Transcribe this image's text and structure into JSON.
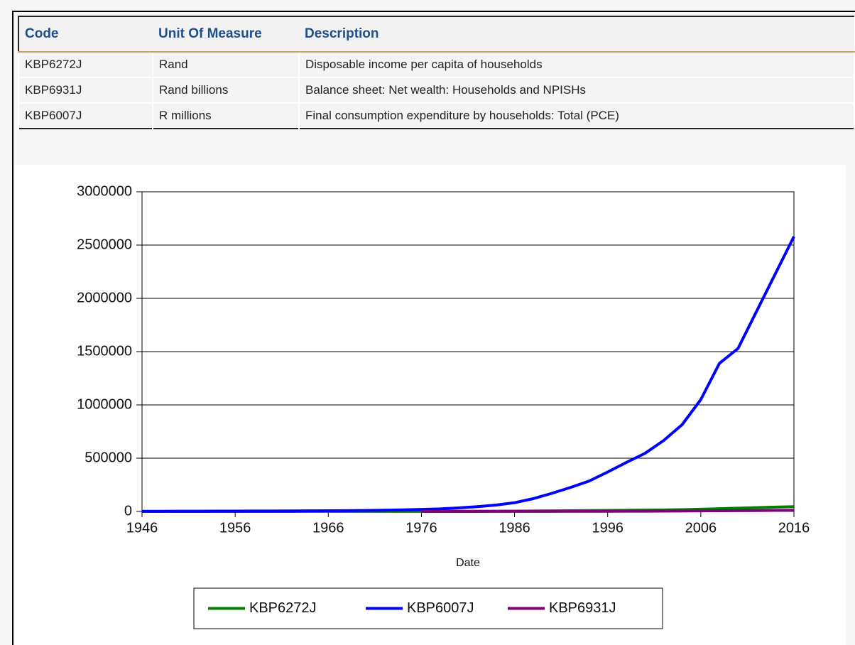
{
  "table": {
    "header": [
      "Code",
      "Unit Of Measure",
      "Description"
    ],
    "rows": [
      [
        "KBP6272J",
        "Rand",
        "Disposable income per capita of households"
      ],
      [
        "KBP6931J",
        "Rand billions",
        "Balance sheet: Net wealth: Households and NPISHs"
      ],
      [
        "KBP6007J",
        "R millions",
        "Final consumption expenditure by households: Total (PCE)"
      ]
    ]
  },
  "chart_data": {
    "type": "line",
    "xlabel": "Date",
    "x": [
      1946,
      1948,
      1950,
      1952,
      1954,
      1956,
      1958,
      1960,
      1962,
      1964,
      1966,
      1968,
      1970,
      1972,
      1974,
      1976,
      1978,
      1980,
      1982,
      1984,
      1986,
      1988,
      1990,
      1992,
      1994,
      1996,
      1998,
      2000,
      2002,
      2004,
      2006,
      2008,
      2010,
      2012,
      2014,
      2016
    ],
    "series": [
      {
        "name": "KBP6272J",
        "color": "#008000",
        "values": [
          150,
          170,
          190,
          210,
          240,
          270,
          300,
          330,
          370,
          420,
          470,
          530,
          600,
          700,
          850,
          1100,
          1400,
          1800,
          2300,
          2900,
          3700,
          4500,
          5500,
          6700,
          8000,
          9500,
          11000,
          12500,
          14500,
          17000,
          21000,
          26000,
          31000,
          36000,
          41000,
          45000
        ]
      },
      {
        "name": "KBP6007J",
        "color": "#0000ff",
        "values": [
          1500,
          1800,
          2200,
          2700,
          3000,
          3400,
          3800,
          4200,
          4800,
          5800,
          6800,
          7900,
          9500,
          11500,
          15000,
          19000,
          24000,
          33000,
          45000,
          60000,
          82000,
          120000,
          170000,
          225000,
          285000,
          370000,
          460000,
          545000,
          665000,
          815000,
          1050000,
          1390000,
          1530000,
          1880000,
          2230000,
          2580000
        ]
      },
      {
        "name": "KBP6931J",
        "color": "#800080",
        "values": [
          null,
          null,
          null,
          null,
          null,
          null,
          null,
          null,
          null,
          null,
          null,
          null,
          null,
          null,
          null,
          150,
          200,
          280,
          380,
          500,
          650,
          850,
          1100,
          1350,
          1650,
          2000,
          2400,
          2900,
          3600,
          4500,
          5700,
          6800,
          7300,
          8500,
          9800,
          11000
        ]
      }
    ],
    "xlim": [
      1946,
      2016
    ],
    "xticks": [
      1946,
      1956,
      1966,
      1976,
      1986,
      1996,
      2006,
      2016
    ],
    "ylim": [
      0,
      3000000
    ],
    "yticks": [
      0,
      500000,
      1000000,
      1500000,
      2000000,
      2500000,
      3000000
    ],
    "grid": true,
    "legend": "bottom"
  }
}
